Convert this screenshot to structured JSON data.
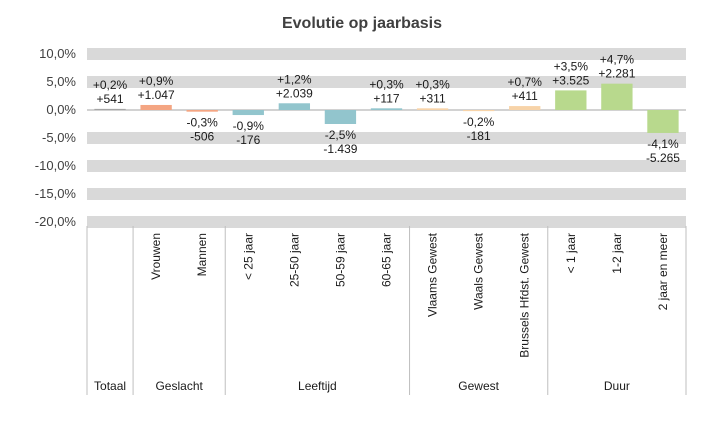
{
  "chart_data": {
    "type": "bar",
    "title": "Evolutie op jaarbasis",
    "xlabel": "",
    "ylabel": "",
    "ylim": [
      -20,
      10
    ],
    "yticks": [
      10,
      5,
      0,
      -5,
      -10,
      -15,
      -20
    ],
    "ytick_labels": [
      "10,0%",
      "5,0%",
      "0,0%",
      "-5,0%",
      "-10,0%",
      "-15,0%",
      "-20,0%"
    ],
    "grid": true,
    "legend": "none",
    "categories": [
      "",
      "Vrouwen",
      "Mannen",
      "< 25 jaar",
      "25-50 jaar",
      "50-59 jaar",
      "60-65 jaar",
      "Vlaams Gewest",
      "Waals Gewest",
      "Brussels Hfdst. Gewest",
      "< 1 jaar",
      "1-2 jaar",
      "2 jaar en meer"
    ],
    "values": [
      0.2,
      0.9,
      -0.3,
      -0.9,
      1.2,
      -2.5,
      0.3,
      0.3,
      -0.2,
      0.7,
      3.5,
      4.7,
      -4.1
    ],
    "pct_labels": [
      "+0,2%",
      "+0,9%",
      "-0,3%",
      "-0,9%",
      "+1,2%",
      "-2,5%",
      "+0,3%",
      "+0,3%",
      "-0,2%",
      "+0,7%",
      "+3,5%",
      "+4,7%",
      "-4,1%"
    ],
    "abs_labels": [
      "+541",
      "+1.047",
      "-506",
      "-176",
      "+2.039",
      "-1.439",
      "+117",
      "+311",
      "-181",
      "+411",
      "+3.525",
      "+2.281",
      "-5.265"
    ],
    "bar_colors": [
      "#a5a5a5",
      "#f4a582",
      "#f4a582",
      "#92c5cd",
      "#92c5cd",
      "#92c5cd",
      "#92c5cd",
      "#f7d3a8",
      "#f7d3a8",
      "#f7d3a8",
      "#b8d98d",
      "#b8d98d",
      "#b8d98d"
    ],
    "groups": [
      {
        "name": "Totaal",
        "start": 0,
        "end": 0
      },
      {
        "name": "Geslacht",
        "start": 1,
        "end": 2
      },
      {
        "name": "Leeftijd",
        "start": 3,
        "end": 6
      },
      {
        "name": "Gewest",
        "start": 7,
        "end": 9
      },
      {
        "name": "Duur",
        "start": 10,
        "end": 12
      }
    ],
    "colors": {
      "gridband": "#d9d9d9",
      "zero_line": "#a6a6a6",
      "separator": "#bfbfbf",
      "text": "#1a1a1a"
    }
  }
}
